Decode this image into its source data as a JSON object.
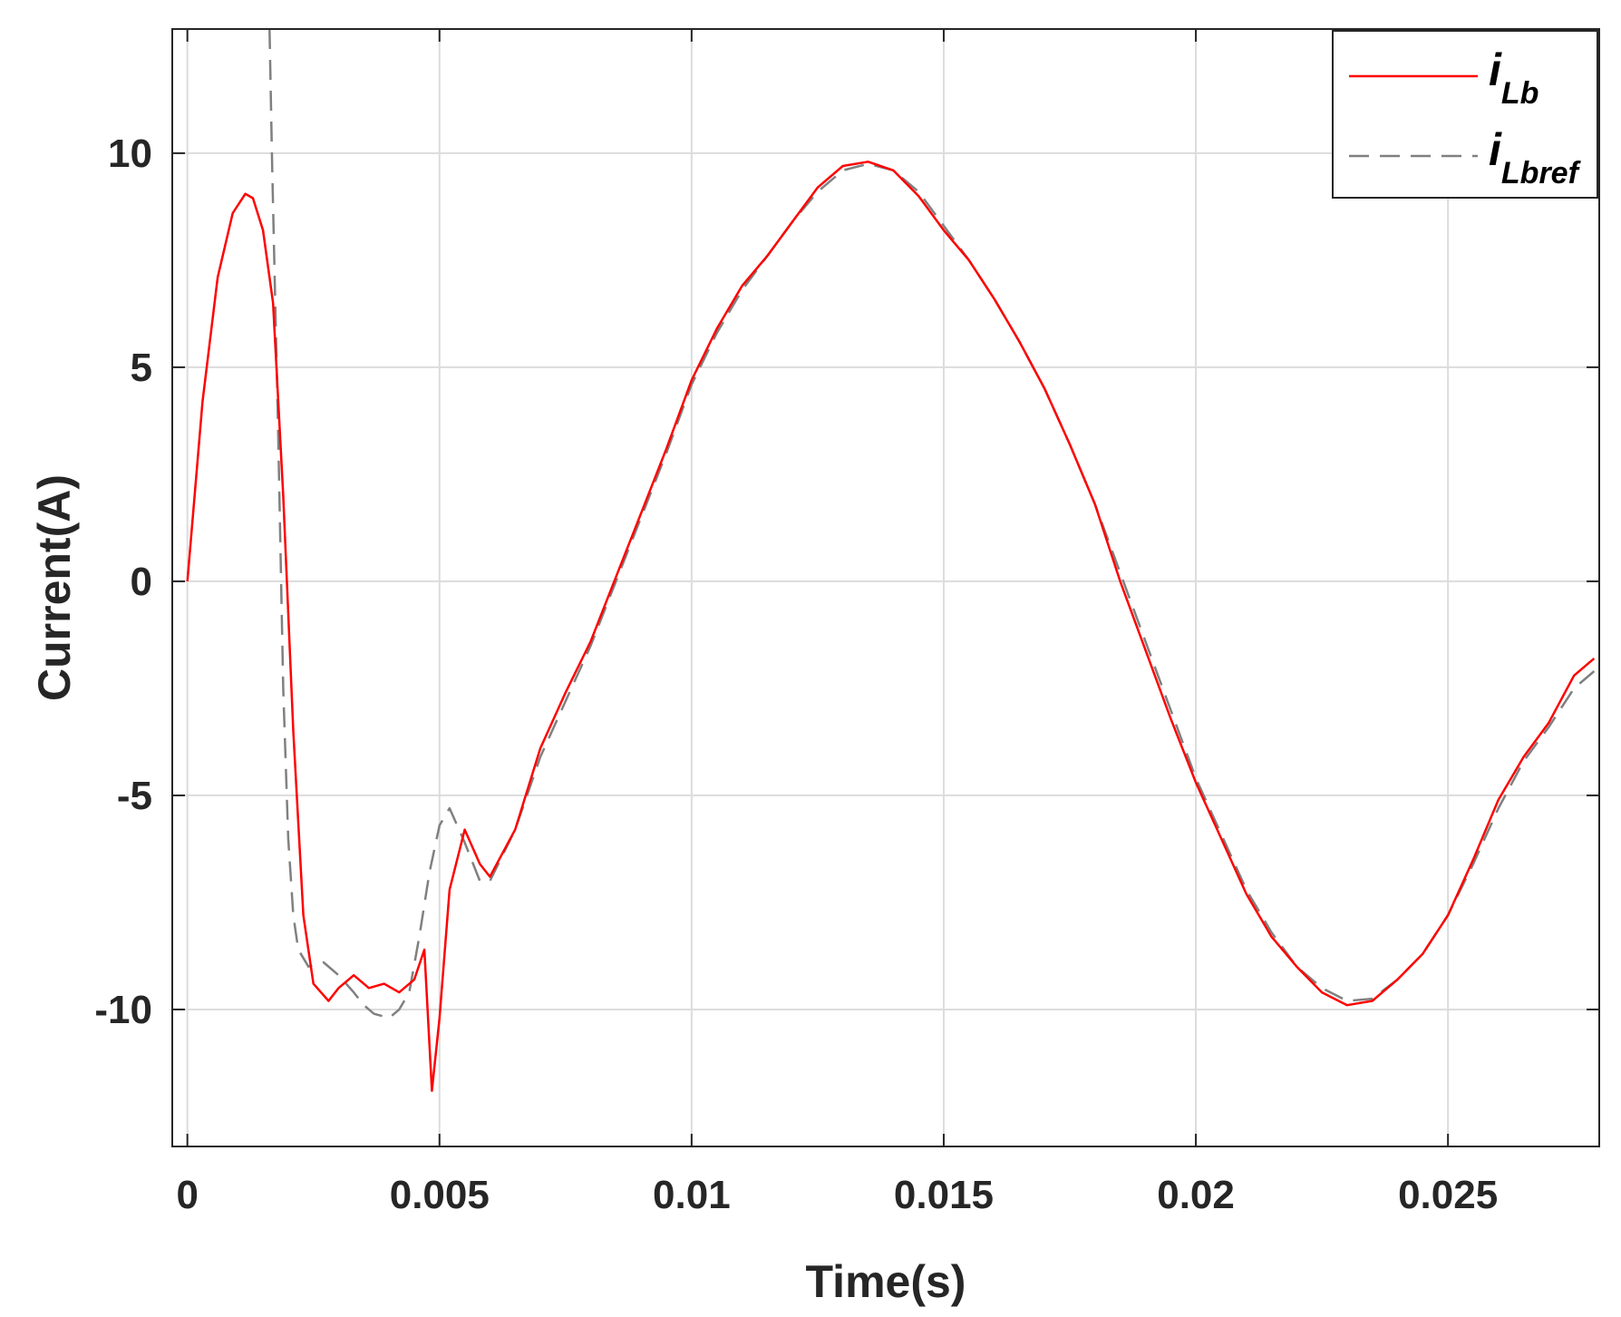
{
  "chart_data": {
    "type": "line",
    "title": "",
    "xlabel": "Time(s)",
    "ylabel": "Current(A)",
    "xlim": [
      -0.0003,
      0.028
    ],
    "ylim": [
      -13.2,
      12.9
    ],
    "x_ticks": [
      0,
      0.005,
      0.01,
      0.015,
      0.02,
      0.025
    ],
    "x_tick_labels": [
      "0",
      "0.005",
      "0.01",
      "0.015",
      "0.02",
      "0.025"
    ],
    "y_ticks": [
      -10,
      -5,
      0,
      5,
      10
    ],
    "y_tick_labels": [
      "-10",
      "-5",
      "0",
      "5",
      "10"
    ],
    "grid": true,
    "legend_position": "top-right",
    "series": [
      {
        "name": "iLb",
        "legend_main": "i",
        "legend_sub": "Lb",
        "color": "#ff0000",
        "style": "solid",
        "points": [
          [
            0,
            0
          ],
          [
            0.0003,
            4.2
          ],
          [
            0.0006,
            7.1
          ],
          [
            0.0009,
            8.6
          ],
          [
            0.00115,
            9.05
          ],
          [
            0.0013,
            8.95
          ],
          [
            0.0015,
            8.2
          ],
          [
            0.0017,
            6.5
          ],
          [
            0.0019,
            2.0
          ],
          [
            0.0021,
            -3.5
          ],
          [
            0.0023,
            -7.8
          ],
          [
            0.0025,
            -9.4
          ],
          [
            0.0028,
            -9.8
          ],
          [
            0.003,
            -9.5
          ],
          [
            0.0033,
            -9.2
          ],
          [
            0.0036,
            -9.5
          ],
          [
            0.0039,
            -9.4
          ],
          [
            0.0042,
            -9.6
          ],
          [
            0.0045,
            -9.3
          ],
          [
            0.0047,
            -8.6
          ],
          [
            0.00485,
            -11.9
          ],
          [
            0.005,
            -10.2
          ],
          [
            0.0052,
            -7.2
          ],
          [
            0.0055,
            -5.8
          ],
          [
            0.0058,
            -6.6
          ],
          [
            0.006,
            -6.9
          ],
          [
            0.0065,
            -5.8
          ],
          [
            0.007,
            -3.9
          ],
          [
            0.0075,
            -2.6
          ],
          [
            0.008,
            -1.4
          ],
          [
            0.0085,
            0.1
          ],
          [
            0.009,
            1.6
          ],
          [
            0.0095,
            3.1
          ],
          [
            0.01,
            4.7
          ],
          [
            0.0105,
            5.9
          ],
          [
            0.011,
            6.9
          ],
          [
            0.0115,
            7.6
          ],
          [
            0.012,
            8.4
          ],
          [
            0.0125,
            9.2
          ],
          [
            0.013,
            9.7
          ],
          [
            0.0135,
            9.8
          ],
          [
            0.014,
            9.6
          ],
          [
            0.0145,
            9.0
          ],
          [
            0.015,
            8.2
          ],
          [
            0.0155,
            7.5
          ],
          [
            0.016,
            6.6
          ],
          [
            0.0165,
            5.6
          ],
          [
            0.017,
            4.5
          ],
          [
            0.0175,
            3.2
          ],
          [
            0.018,
            1.8
          ],
          [
            0.0185,
            0.0
          ],
          [
            0.019,
            -1.6
          ],
          [
            0.0195,
            -3.2
          ],
          [
            0.02,
            -4.7
          ],
          [
            0.0205,
            -6.0
          ],
          [
            0.021,
            -7.3
          ],
          [
            0.0215,
            -8.3
          ],
          [
            0.022,
            -9.0
          ],
          [
            0.0225,
            -9.6
          ],
          [
            0.023,
            -9.9
          ],
          [
            0.0235,
            -9.8
          ],
          [
            0.024,
            -9.3
          ],
          [
            0.0245,
            -8.7
          ],
          [
            0.025,
            -7.8
          ],
          [
            0.0255,
            -6.5
          ],
          [
            0.026,
            -5.1
          ],
          [
            0.0265,
            -4.1
          ],
          [
            0.027,
            -3.3
          ],
          [
            0.0275,
            -2.2
          ],
          [
            0.0279,
            -1.8
          ]
        ]
      },
      {
        "name": "iLbref",
        "legend_main": "i",
        "legend_sub": "Lbref",
        "color": "#808080",
        "style": "dashed",
        "points": [
          [
            0.00163,
            12.9
          ],
          [
            0.00168,
            9.8
          ],
          [
            0.0018,
            3.5
          ],
          [
            0.0019,
            -2.5
          ],
          [
            0.002,
            -6.0
          ],
          [
            0.0021,
            -7.8
          ],
          [
            0.0022,
            -8.6
          ],
          [
            0.0024,
            -9.0
          ],
          [
            0.0027,
            -8.9
          ],
          [
            0.003,
            -9.2
          ],
          [
            0.0033,
            -9.6
          ],
          [
            0.0035,
            -9.9
          ],
          [
            0.0037,
            -10.1
          ],
          [
            0.004,
            -10.2
          ],
          [
            0.0042,
            -10.0
          ],
          [
            0.0044,
            -9.6
          ],
          [
            0.0046,
            -8.3
          ],
          [
            0.0048,
            -6.8
          ],
          [
            0.005,
            -5.7
          ],
          [
            0.0052,
            -5.3
          ],
          [
            0.0055,
            -6.1
          ],
          [
            0.0058,
            -7.0
          ],
          [
            0.006,
            -7.0
          ],
          [
            0.0065,
            -5.8
          ],
          [
            0.007,
            -4.1
          ],
          [
            0.0075,
            -2.8
          ],
          [
            0.008,
            -1.5
          ],
          [
            0.0085,
            0.0
          ],
          [
            0.009,
            1.5
          ],
          [
            0.0095,
            3.0
          ],
          [
            0.01,
            4.6
          ],
          [
            0.0105,
            5.8
          ],
          [
            0.011,
            6.8
          ],
          [
            0.0115,
            7.6
          ],
          [
            0.012,
            8.4
          ],
          [
            0.0125,
            9.1
          ],
          [
            0.013,
            9.6
          ],
          [
            0.0135,
            9.75
          ],
          [
            0.014,
            9.6
          ],
          [
            0.0145,
            9.1
          ],
          [
            0.015,
            8.3
          ],
          [
            0.0155,
            7.5
          ],
          [
            0.016,
            6.6
          ],
          [
            0.0165,
            5.6
          ],
          [
            0.017,
            4.5
          ],
          [
            0.0175,
            3.2
          ],
          [
            0.018,
            1.8
          ],
          [
            0.0185,
            0.2
          ],
          [
            0.019,
            -1.4
          ],
          [
            0.0195,
            -3.0
          ],
          [
            0.02,
            -4.6
          ],
          [
            0.0205,
            -5.9
          ],
          [
            0.021,
            -7.2
          ],
          [
            0.0215,
            -8.2
          ],
          [
            0.022,
            -9.0
          ],
          [
            0.0225,
            -9.5
          ],
          [
            0.023,
            -9.8
          ],
          [
            0.0235,
            -9.75
          ],
          [
            0.024,
            -9.3
          ],
          [
            0.0245,
            -8.7
          ],
          [
            0.025,
            -7.8
          ],
          [
            0.0255,
            -6.6
          ],
          [
            0.026,
            -5.3
          ],
          [
            0.0265,
            -4.2
          ],
          [
            0.027,
            -3.4
          ],
          [
            0.0275,
            -2.5
          ],
          [
            0.0279,
            -2.1
          ]
        ]
      }
    ]
  }
}
